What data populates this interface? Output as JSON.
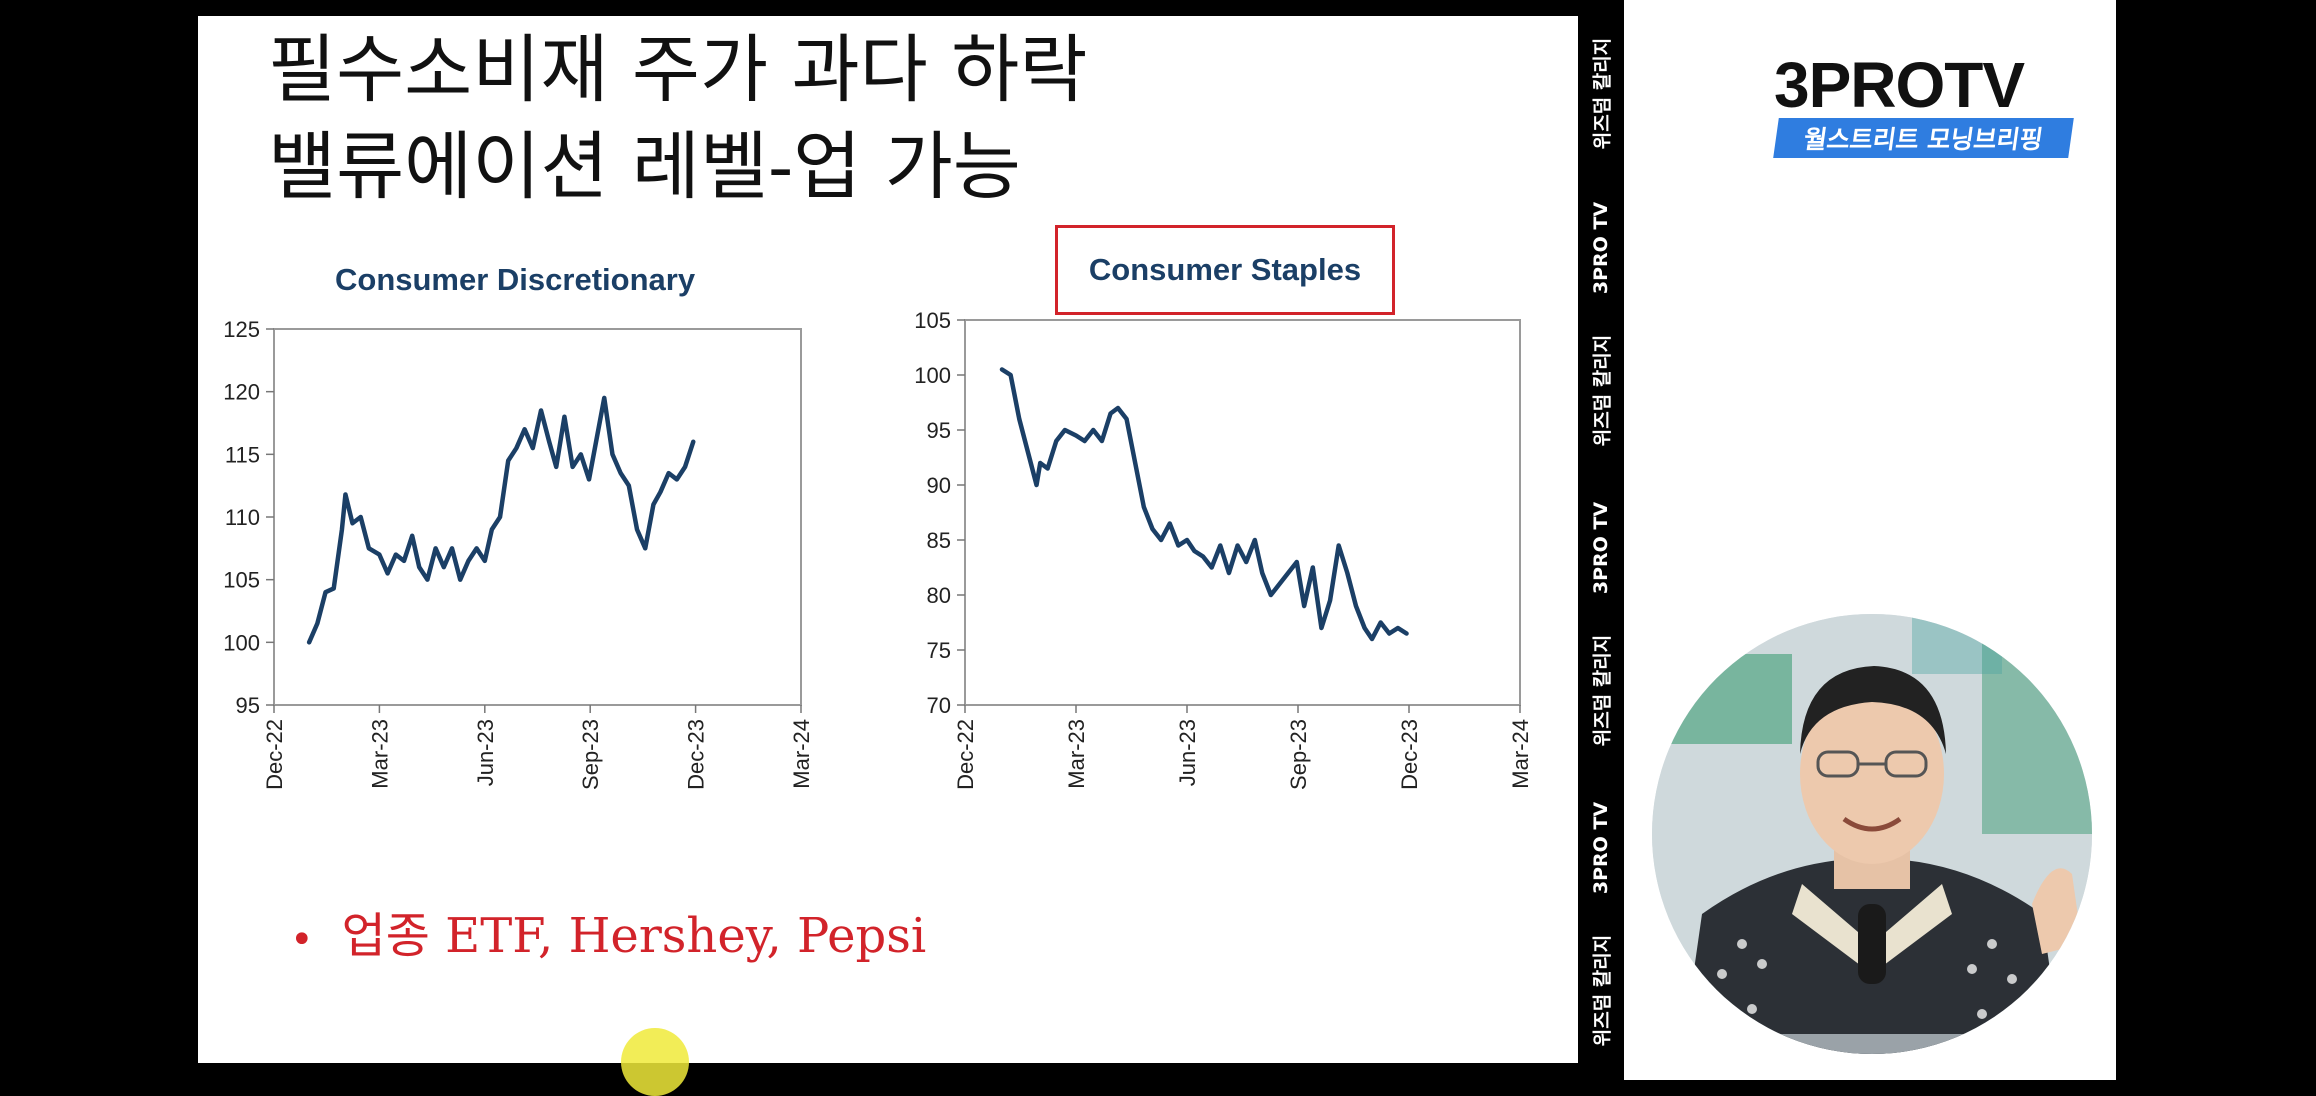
{
  "slide": {
    "title": "필수소비재 주가 과다 하락\n밸류에이션 레벨-업 가능",
    "bullet": "업종 ETF, Hershey, Pepsi",
    "bullet_marker": "•",
    "accent_color": "#d2232a",
    "line_color": "#1b3f66"
  },
  "chart_data": [
    {
      "type": "line",
      "title": "Consumer Discretionary",
      "xlabel": "",
      "ylabel": "",
      "ylim": [
        95,
        125
      ],
      "yticks": [
        95,
        100,
        105,
        110,
        115,
        120,
        125
      ],
      "xticks": [
        "Dec-22",
        "Mar-23",
        "Jun-23",
        "Sep-23",
        "Dec-23",
        "Mar-24"
      ],
      "xlim_months": [
        0,
        15
      ],
      "grid": false,
      "series": [
        {
          "x": [
            "Jan-01",
            "Jan-08",
            "Jan-15",
            "Jan-22",
            "Jan-29",
            "Feb-02",
            "Feb-08",
            "Feb-15",
            "Feb-22",
            "Mar-01",
            "Mar-08",
            "Mar-15",
            "Mar-22",
            "Mar-29",
            "Apr-05",
            "Apr-12",
            "Apr-19",
            "Apr-26",
            "May-03",
            "May-10",
            "May-17",
            "May-24",
            "May-31",
            "Jun-07",
            "Jun-14",
            "Jun-21",
            "Jun-28",
            "Jul-05",
            "Jul-12",
            "Jul-19",
            "Jul-26",
            "Aug-02",
            "Aug-09",
            "Aug-16",
            "Aug-23",
            "Aug-30",
            "Sep-06",
            "Sep-13",
            "Sep-20",
            "Sep-27",
            "Oct-04",
            "Oct-11",
            "Oct-18",
            "Oct-25",
            "Nov-01",
            "Nov-08",
            "Nov-15",
            "Nov-22",
            "Nov-29"
          ],
          "values": [
            100.0,
            101.5,
            104.0,
            104.3,
            109.0,
            111.8,
            109.5,
            110.0,
            107.5,
            107.0,
            105.5,
            107.0,
            106.5,
            108.5,
            106.0,
            105.0,
            107.5,
            106.0,
            107.5,
            105.0,
            106.5,
            107.5,
            106.5,
            109.0,
            110.0,
            114.5,
            115.5,
            117.0,
            115.5,
            118.5,
            116.0,
            114.0,
            118.0,
            114.0,
            115.0,
            113.0,
            116.0,
            119.5,
            115.0,
            113.5,
            112.5,
            109.0,
            107.5,
            111.0,
            112.0,
            113.5,
            113.0,
            114.0,
            116.0
          ]
        }
      ]
    },
    {
      "type": "line",
      "title": "Consumer Staples",
      "xlabel": "",
      "ylabel": "",
      "ylim": [
        70,
        105
      ],
      "yticks": [
        70,
        75,
        80,
        85,
        90,
        95,
        100,
        105
      ],
      "xticks": [
        "Dec-22",
        "Mar-23",
        "Jun-23",
        "Sep-23",
        "Dec-23",
        "Mar-24"
      ],
      "grid": false,
      "highlighted": true,
      "series": [
        {
          "x": [
            "Jan-01",
            "Jan-08",
            "Jan-15",
            "Jan-22",
            "Jan-29",
            "Feb-02",
            "Feb-08",
            "Feb-15",
            "Feb-22",
            "Mar-01",
            "Mar-08",
            "Mar-15",
            "Mar-22",
            "Mar-29",
            "Apr-05",
            "Apr-12",
            "Apr-19",
            "Apr-26",
            "May-03",
            "May-10",
            "May-17",
            "May-24",
            "May-31",
            "Jun-07",
            "Jun-14",
            "Jun-21",
            "Jun-28",
            "Jul-05",
            "Jul-12",
            "Jul-19",
            "Jul-26",
            "Aug-02",
            "Aug-09",
            "Aug-16",
            "Aug-23",
            "Aug-30",
            "Sep-06",
            "Sep-13",
            "Sep-20",
            "Sep-27",
            "Oct-04",
            "Oct-11",
            "Oct-18",
            "Oct-25",
            "Nov-01",
            "Nov-08",
            "Nov-15",
            "Nov-22",
            "Nov-29"
          ],
          "values": [
            100.5,
            100.0,
            96.0,
            93.0,
            90.0,
            92.0,
            91.5,
            94.0,
            95.0,
            94.5,
            94.0,
            95.0,
            94.0,
            96.5,
            97.0,
            96.0,
            92.0,
            88.0,
            86.0,
            85.0,
            86.5,
            84.5,
            85.0,
            84.0,
            83.5,
            82.5,
            84.5,
            82.0,
            84.5,
            83.0,
            85.0,
            82.0,
            80.0,
            81.0,
            82.0,
            83.0,
            79.0,
            82.5,
            77.0,
            79.5,
            84.5,
            82.0,
            79.0,
            77.0,
            76.0,
            77.5,
            76.5,
            77.0,
            76.5
          ]
        }
      ]
    }
  ],
  "ticker": {
    "items": [
      "위즈덤 칼리지",
      "3PRO TV",
      "위즈덤 칼리지",
      "3PRO TV",
      "위즈덤 칼리지",
      "3PRO TV",
      "위즈덤 칼리지"
    ]
  },
  "branding": {
    "logo": "3PROTV",
    "subtitle": "월스트리트 모닝브리핑",
    "brand_blue": "#2f7de0"
  }
}
